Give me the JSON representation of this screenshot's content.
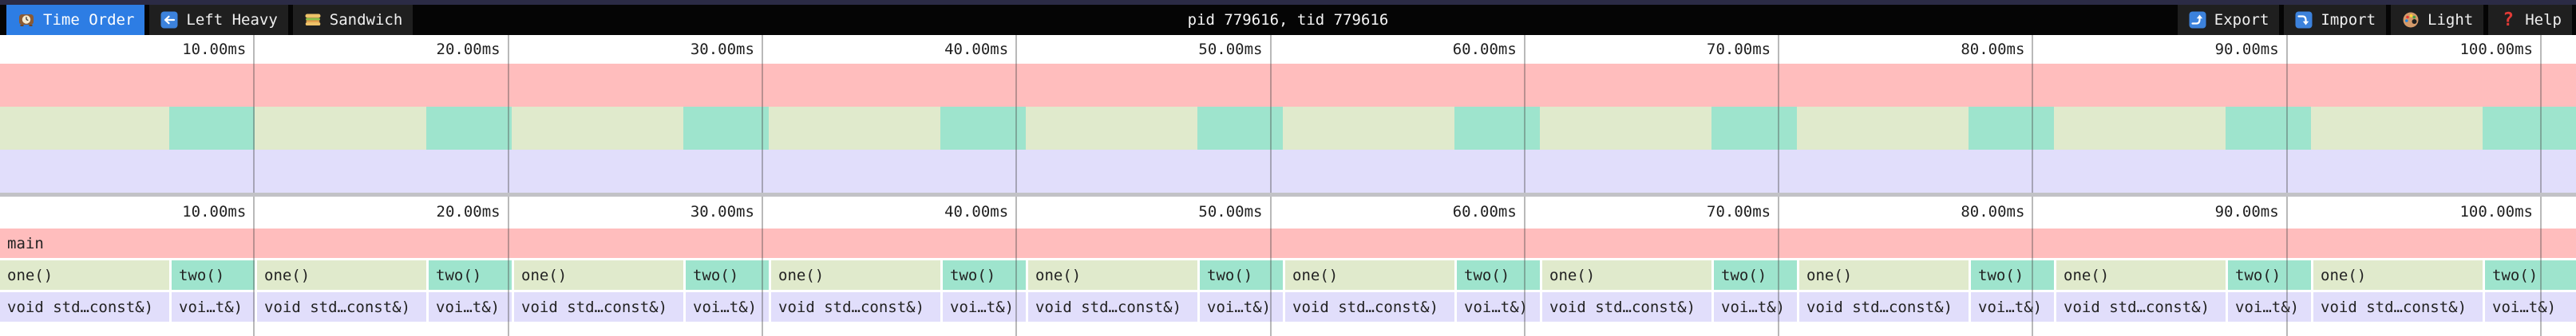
{
  "window": {
    "title": "pid 779616, tid 779616"
  },
  "toolbar": {
    "tabs": [
      {
        "label": "Time Order",
        "icon": "clock-icon",
        "active": true
      },
      {
        "label": "Left Heavy",
        "icon": "left-arrow-icon",
        "active": false
      },
      {
        "label": "Sandwich",
        "icon": "sandwich-icon",
        "active": false
      }
    ],
    "actions": [
      {
        "label": "Export",
        "icon": "export-icon"
      },
      {
        "label": "Import",
        "icon": "import-icon"
      },
      {
        "label": "Light",
        "icon": "palette-icon"
      },
      {
        "label": "Help",
        "icon": "help-icon"
      }
    ]
  },
  "ruler_ticks": [
    "10.00ms",
    "20.00ms",
    "30.00ms",
    "40.00ms",
    "50.00ms",
    "60.00ms",
    "70.00ms",
    "80.00ms",
    "90.00ms",
    "100.00ms"
  ],
  "flame": {
    "root_label": "main",
    "cycle_count": 10,
    "cycle_ms": 10.0,
    "level1": {
      "one_label": "one()",
      "two_label": "two()"
    },
    "level2": {
      "one_label": "void std…const&)",
      "two_label": "voi…t&)"
    }
  },
  "colors": {
    "accent_tab": "#2d7de4",
    "topbar_strip": "#2b2b45",
    "frame_main": "#ffbdbd",
    "frame_one": "#e0eacc",
    "frame_two": "#9ee4cd",
    "frame_void": "#e1defb",
    "separator": "#c2c2c6"
  }
}
